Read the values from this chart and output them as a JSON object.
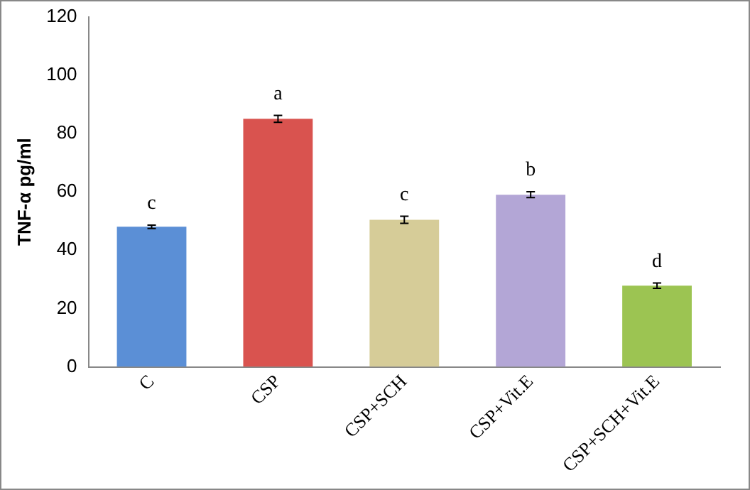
{
  "chart_data": {
    "type": "bar",
    "ylabel": "TNF-α pg/ml",
    "categories": [
      "C",
      "CSP",
      "CSP+SCH",
      "CSP+Vit.E",
      "CSP+SCH+Vit.E"
    ],
    "values": [
      48,
      85,
      50.4,
      59,
      27.8
    ],
    "errors": [
      0.6,
      1.2,
      1.2,
      1,
      0.9
    ],
    "colors": [
      "#5b8fd6",
      "#d9534f",
      "#d6cc98",
      "#b3a6d6",
      "#9cc452"
    ],
    "ylim": [
      0,
      120
    ],
    "yticks": [
      0,
      20,
      40,
      60,
      80,
      100,
      120
    ],
    "grid": false,
    "legend": false,
    "annotations": [
      "c",
      "a",
      "c",
      "b",
      "d"
    ]
  }
}
